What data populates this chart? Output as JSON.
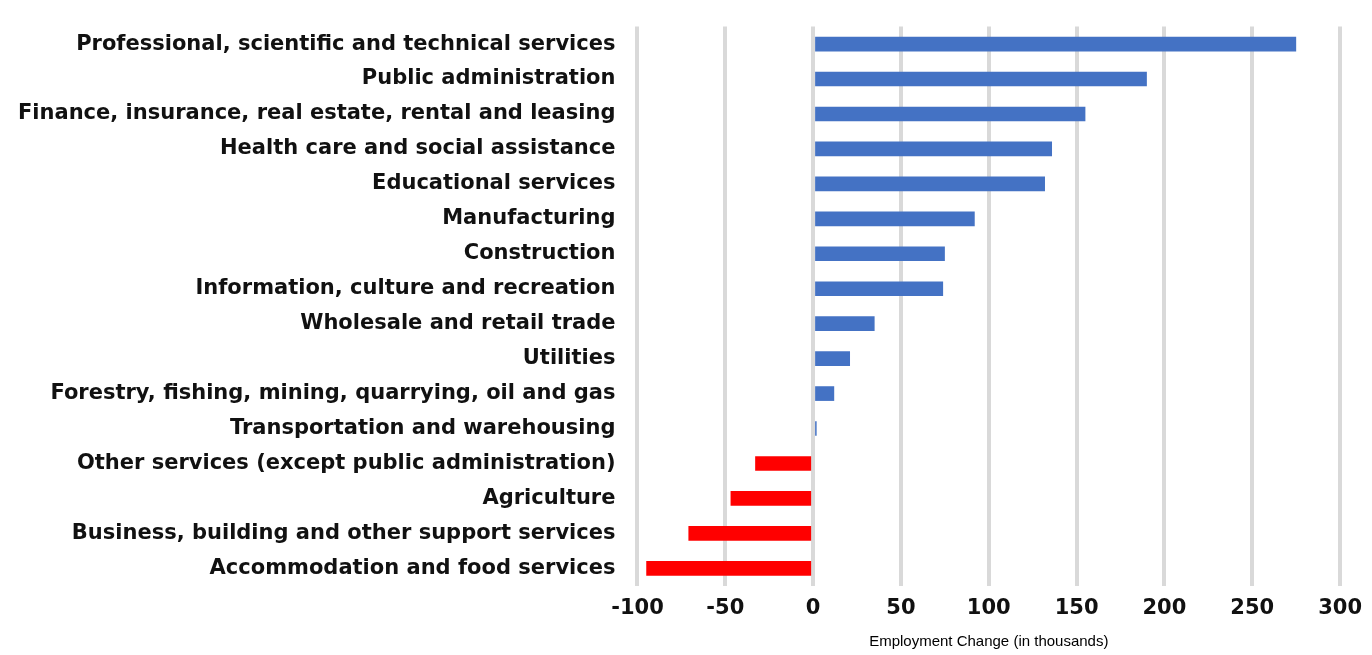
{
  "chart_data": {
    "type": "bar",
    "orientation": "horizontal",
    "xlabel": "Employment Change (in thousands)",
    "categories": [
      "Professional, scientific and technical services",
      "Public administration",
      "Finance, insurance, real estate, rental and leasing",
      "Health care and social assistance",
      "Educational services",
      "Manufacturing",
      "Construction",
      "Information, culture and recreation",
      "Wholesale and retail trade",
      "Utilities",
      "Forestry, fishing, mining, quarrying, oil and gas",
      "Transportation and warehousing",
      "Other services (except public administration)",
      "Agriculture",
      "Business, building and other support services",
      "Accommodation and food services"
    ],
    "values": [
      275,
      190,
      155,
      136,
      132,
      92,
      75,
      74,
      35,
      21,
      12,
      2,
      -33,
      -47,
      -71,
      -95
    ],
    "colors": [
      "#4472c4",
      "#4472c4",
      "#4472c4",
      "#4472c4",
      "#4472c4",
      "#4472c4",
      "#4472c4",
      "#4472c4",
      "#4472c4",
      "#4472c4",
      "#4472c4",
      "#4472c4",
      "#ff0000",
      "#ff0000",
      "#ff0000",
      "#ff0000"
    ],
    "xlim": [
      -100,
      300
    ],
    "xticks": [
      -100,
      -50,
      0,
      50,
      100,
      150,
      200,
      250,
      300
    ],
    "grid": "x",
    "legend": false
  }
}
